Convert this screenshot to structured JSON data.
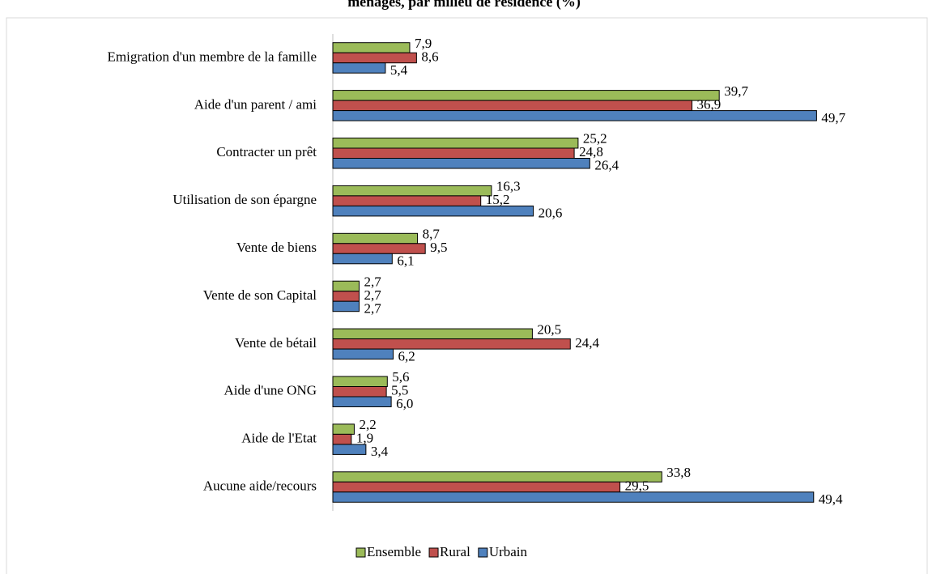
{
  "chart_data": {
    "type": "hbar",
    "title": "ménages, par milieu de résidence (%)",
    "categories": [
      "Emigration d'un membre de la famille",
      "Aide d'un parent / ami",
      "Contracter un prêt",
      "Utilisation de son épargne",
      "Vente de biens",
      "Vente de son Capital",
      "Vente de bétail",
      "Aide d'une ONG",
      "Aide de l'Etat",
      "Aucune aide/recours"
    ],
    "series": [
      {
        "name": "Ensemble",
        "color": "#9bbb59",
        "values": [
          7.9,
          39.7,
          25.2,
          16.3,
          8.7,
          2.7,
          20.5,
          5.6,
          2.2,
          33.8
        ],
        "value_labels": [
          "7,9",
          "39,7",
          "25,2",
          "16,3",
          "8,7",
          "2,7",
          "20,5",
          "5,6",
          "2,2",
          "33,8"
        ]
      },
      {
        "name": "Rural",
        "color": "#c0504d",
        "values": [
          8.6,
          36.9,
          24.8,
          15.2,
          9.5,
          2.7,
          24.4,
          5.5,
          1.9,
          29.5
        ],
        "value_labels": [
          "8,6",
          "36,9",
          "24,8",
          "15,2",
          "9,5",
          "2,7",
          "24,4",
          "5,5",
          "1,9",
          "29,5"
        ]
      },
      {
        "name": "Urbain",
        "color": "#4f81bd",
        "values": [
          5.4,
          49.7,
          26.4,
          20.6,
          6.1,
          2.7,
          6.2,
          6.0,
          3.4,
          49.4
        ],
        "value_labels": [
          "5,4",
          "49,7",
          "26,4",
          "20,6",
          "6,1",
          "2,7",
          "6,2",
          "6,0",
          "3,4",
          "49,4"
        ]
      }
    ],
    "xlim": [
      0,
      50
    ],
    "legend": "bottom"
  }
}
